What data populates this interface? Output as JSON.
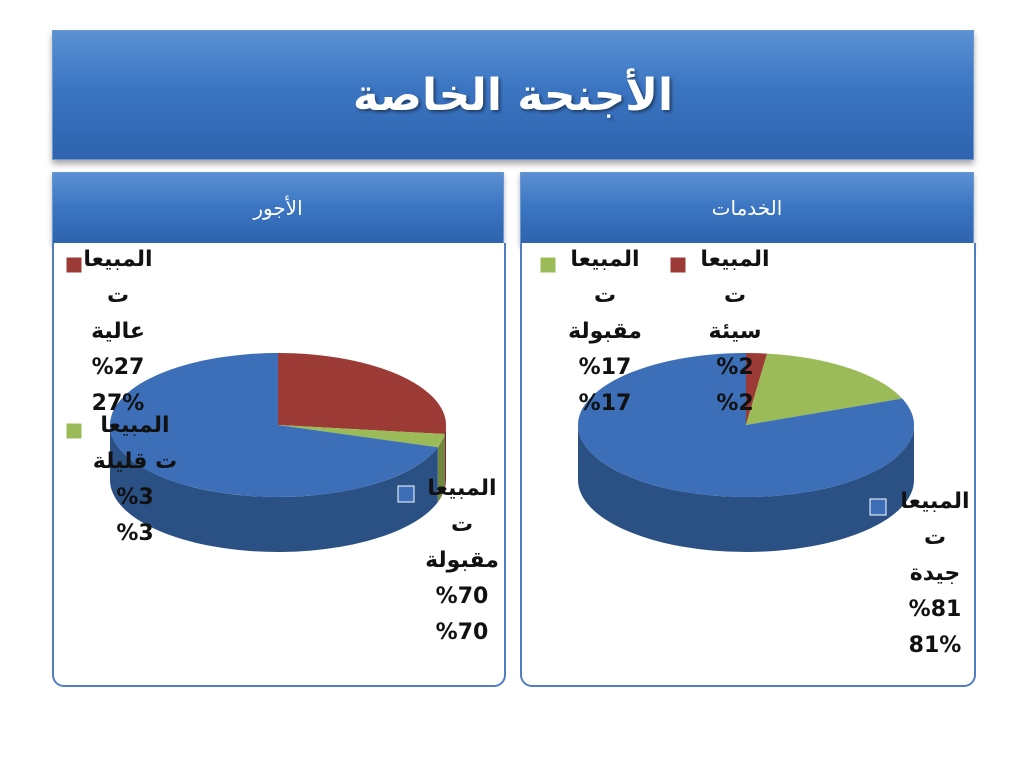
{
  "slide": {
    "title": "الأجنحة الخاصة"
  },
  "colors": {
    "blue": "#3c6fb8",
    "red": "#9c3a35",
    "green": "#9bbb59"
  },
  "chart_data": [
    {
      "type": "pie",
      "title": "الأجور",
      "slices": [
        {
          "category_line1": "المبيعا",
          "category_line2": "ت",
          "category_line3": "مقبولة",
          "percent_label": "%70",
          "value_label": "%70",
          "value": 70,
          "color": "#3c6fb8"
        },
        {
          "category_line1": "المبيعا",
          "category_line2": "ت",
          "category_line3": "عالية",
          "percent_label": "%27",
          "value_label": "27%",
          "value": 27,
          "color": "#9c3a35"
        },
        {
          "category_line1": "المبيعا",
          "category_line2": "ت قليلة",
          "category_line3": "",
          "percent_label": "%3",
          "value_label": "%3",
          "value": 3,
          "color": "#9bbb59"
        }
      ]
    },
    {
      "type": "pie",
      "title": "الخدمات",
      "slices": [
        {
          "category_line1": "المبيعا",
          "category_line2": "ت",
          "category_line3": "جيدة",
          "percent_label": "%81",
          "value_label": "81%",
          "value": 81,
          "color": "#3c6fb8"
        },
        {
          "category_line1": "المبيعا",
          "category_line2": "ت",
          "category_line3": "سيئة",
          "percent_label": "%2",
          "value_label": "%2",
          "value": 2,
          "color": "#9c3a35"
        },
        {
          "category_line1": "المبيعا",
          "category_line2": "ت",
          "category_line3": "مقبولة",
          "percent_label": "%17",
          "value_label": "%17",
          "value": 17,
          "color": "#9bbb59"
        }
      ]
    }
  ]
}
